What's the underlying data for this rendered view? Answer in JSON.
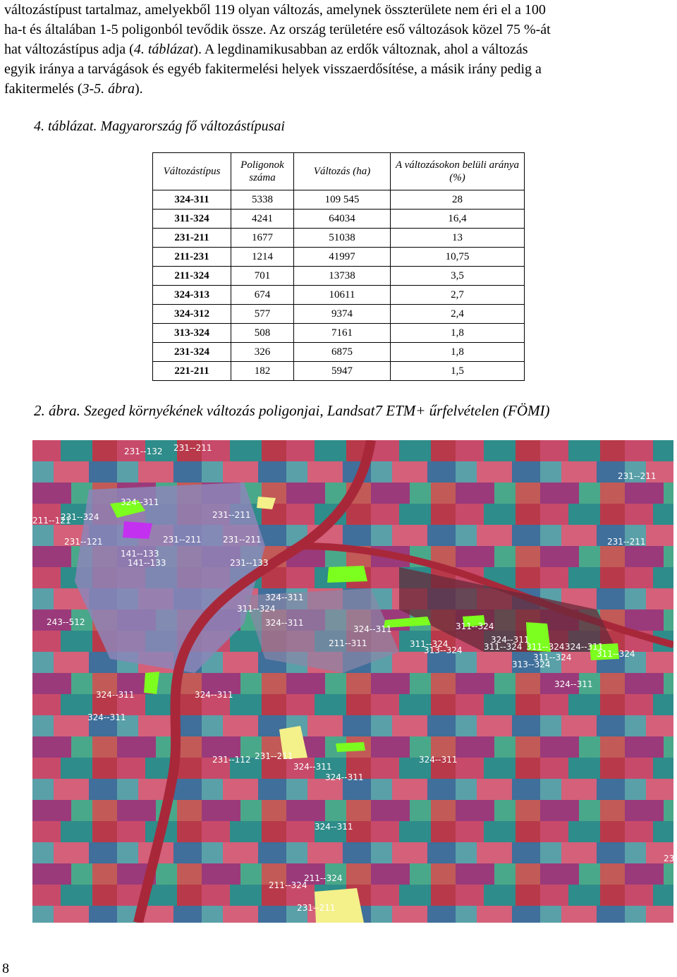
{
  "paragraph": {
    "line1": "változástípust tartalmaz, amelyekből 119 olyan változás, amelynek összterülete nem éri el a 100",
    "line2": "ha-t és általában 1-5 poligonból tevődik össze. Az ország területére eső változások közel 75 %-át",
    "line3_a": "hat változástípus adja (",
    "line3_ref": "4. táblázat",
    "line3_b": "). A legdinamikusabban az erdők változnak, ahol a változás",
    "line4": "egyik iránya a tarvágások és egyéb fakitermelési helyek visszaerdősítése, a másik irány pedig a",
    "line5_a": "fakitermelés (",
    "line5_ref": "3-5. ábra",
    "line5_b": ")."
  },
  "table_caption": "4. táblázat. Magyarország fő változástípusai",
  "table": {
    "headers": [
      "Változástípus",
      "Poligonok száma",
      "Változás (ha)",
      "A változásokon belüli aránya (%)"
    ],
    "rows": [
      [
        "324-311",
        "5338",
        "109 545",
        "28"
      ],
      [
        "311-324",
        "4241",
        "64034",
        "16,4"
      ],
      [
        "231-211",
        "1677",
        "51038",
        "13"
      ],
      [
        "211-231",
        "1214",
        "41997",
        "10,75"
      ],
      [
        "211-324",
        "701",
        "13738",
        "3,5"
      ],
      [
        "324-313",
        "674",
        "10611",
        "2,7"
      ],
      [
        "324-312",
        "577",
        "9374",
        "2,4"
      ],
      [
        "313-324",
        "508",
        "7161",
        "1,8"
      ],
      [
        "231-324",
        "326",
        "6875",
        "1,8"
      ],
      [
        "221-211",
        "182",
        "5947",
        "1,5"
      ]
    ]
  },
  "figure_caption": "2. ábra. Szeged környékének változás poligonjai, Landsat7 ETM+ űrfelvételen (FÖMI)",
  "map_labels": [
    "231--132",
    "231--211",
    "231--211",
    "324--311",
    "211--121",
    "231--324",
    "231--211",
    "231--121",
    "231--211",
    "231--211",
    "231--211",
    "141--133",
    "141--133",
    "231--133",
    "324--311",
    "311--324",
    "324--311",
    "243--512",
    "324--311",
    "211--311",
    "311--324",
    "311--324",
    "311--324",
    "324--311",
    "311--324",
    "324--311",
    "311--324",
    "313--324",
    "313--324",
    "311--324",
    "324--311",
    "324--311",
    "324--311",
    "324--311",
    "231--112",
    "231--211",
    "324--311",
    "324--311",
    "324--311",
    "324--311",
    "211--324",
    "211--324",
    "231--211",
    "23"
  ],
  "page_number": "8",
  "colors": {
    "change_polygon_green": "#7cff1e",
    "change_polygon_purple": "#c430f0",
    "change_polygon_yellow": "#f4f08a",
    "river": "#a8283a"
  }
}
